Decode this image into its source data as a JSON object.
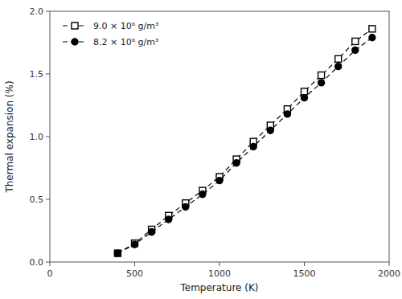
{
  "chart_data": {
    "type": "line",
    "x": [
      400,
      500,
      600,
      700,
      800,
      900,
      1000,
      1100,
      1200,
      1300,
      1400,
      1500,
      1600,
      1700,
      1800,
      1900
    ],
    "series": [
      {
        "name": "9.0 × 10⁶ g/m³",
        "color": "#000000",
        "marker": "square",
        "line_style": "dashed",
        "values": [
          0.07,
          0.15,
          0.26,
          0.37,
          0.47,
          0.57,
          0.68,
          0.82,
          0.96,
          1.09,
          1.22,
          1.36,
          1.49,
          1.62,
          1.76,
          1.86
        ]
      },
      {
        "name": "8.2 × 10⁶ g/m³",
        "color": "#000000",
        "marker": "circle",
        "line_style": "dashed",
        "values": [
          0.07,
          0.14,
          0.24,
          0.34,
          0.44,
          0.54,
          0.65,
          0.79,
          0.92,
          1.05,
          1.18,
          1.31,
          1.43,
          1.56,
          1.69,
          1.79
        ]
      }
    ],
    "xlabel": "Temperature (K)",
    "ylabel": "Thermal expansion (%)",
    "xlim": [
      0,
      2000
    ],
    "ylim": [
      0.0,
      2.0
    ],
    "xticks": [
      0,
      500,
      1000,
      1500,
      2000
    ],
    "yticks": [
      {
        "value": 0.0,
        "label": "0.0"
      },
      0.5,
      {
        "value": 1.0,
        "label": "1.0"
      },
      1.5,
      {
        "value": 2.0,
        "label": "2.0"
      }
    ],
    "grid": false,
    "legend": "upper left"
  }
}
